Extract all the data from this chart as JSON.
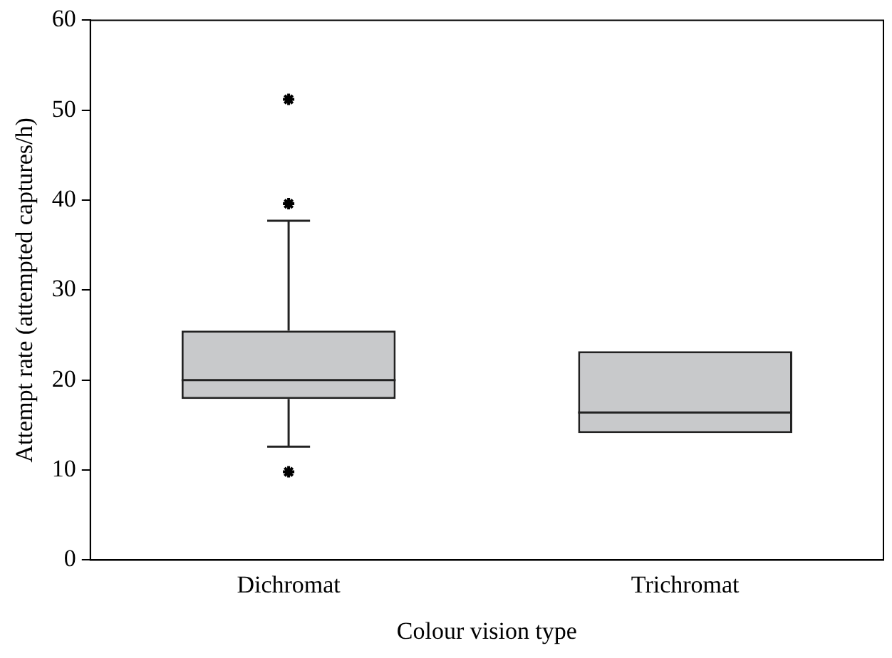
{
  "chart_data": {
    "type": "box",
    "xlabel": "Colour vision type",
    "ylabel": "Attempt rate (attempted captures/h)",
    "categories": [
      "Dichromat",
      "Trichromat"
    ],
    "series": [
      {
        "color": "#c8c9cb",
        "boxes": [
          {
            "low": 12.6,
            "q1": 17.9,
            "median": 20.0,
            "q3": 25.5,
            "high": 37.7,
            "outliers": [
              51.2,
              39.6,
              9.8
            ]
          },
          {
            "low": 14.1,
            "q1": 14.1,
            "median": 16.4,
            "q3": 23.2,
            "high": 23.2
          }
        ]
      }
    ],
    "ylim": [
      0,
      60
    ],
    "yticks": [
      0,
      10,
      20,
      30,
      40,
      50,
      60
    ],
    "grid": false,
    "legend": false,
    "marker": "star"
  }
}
